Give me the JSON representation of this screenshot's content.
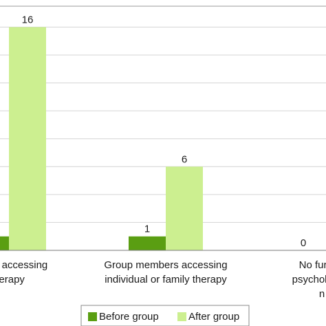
{
  "chart_data": {
    "type": "bar",
    "categories": [
      [
        "mbers accessing",
        "herapy"
      ],
      [
        "Group members accessing",
        "individual or family therapy"
      ],
      [
        "No further",
        "psychologica",
        "n"
      ]
    ],
    "series": [
      {
        "name": "Before group",
        "color": "#5a9e12",
        "values": [
          1,
          1,
          0
        ]
      },
      {
        "name": "After group",
        "color": "#ccef90",
        "values": [
          16,
          6,
          null
        ]
      }
    ],
    "data_labels": [
      [
        "",
        "16"
      ],
      [
        "1",
        "6"
      ],
      [
        "0",
        ""
      ]
    ],
    "ylim": [
      0,
      17.5
    ],
    "grid": true,
    "legend_position": "bottom",
    "title": "",
    "xlabel": "",
    "ylabel": ""
  }
}
